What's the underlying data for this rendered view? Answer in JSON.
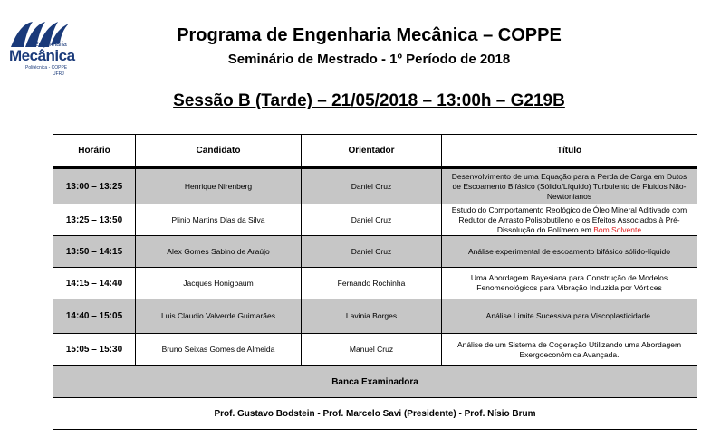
{
  "logo": {
    "line1": "Engenharia",
    "line2": "Mecânica",
    "line3": "Politécnica - COPPE",
    "line4": "UFRJ"
  },
  "header": {
    "title": "Programa de Engenharia Mecânica – COPPE",
    "subtitle": "Seminário de Mestrado - 1º Período de 2018",
    "session": "Sessão B (Tarde) – 21/05/2018 – 13:00h – G219B"
  },
  "table": {
    "columns": [
      "Horário",
      "Candidato",
      "Orientador",
      "Título"
    ],
    "rows": [
      {
        "time": "13:00 – 13:25",
        "candidate": "Henrique Nirenberg",
        "advisor": "Daniel Cruz",
        "title": "Desenvolvimento de uma Equação para a Perda de Carga em Dutos de Escoamento Bifásico (Sólido/Líquido) Turbulento de Fluidos Não-Newtonianos",
        "title_highlight": ""
      },
      {
        "time": "13:25 – 13:50",
        "candidate": "Plinio Martins Dias da Silva",
        "advisor": "Daniel Cruz",
        "title": "Estudo do Comportamento Reológico de Óleo Mineral Aditivado com Redutor de Arrasto Polisobutileno e os Efeitos Associados à Pré-Dissolução do Polímero em ",
        "title_highlight": "Bom Solvente"
      },
      {
        "time": "13:50 – 14:15",
        "candidate": "Alex Gomes Sabino de Araújo",
        "advisor": "Daniel Cruz",
        "title": "Análise experimental de escoamento bifásico sólido-líquido",
        "title_highlight": ""
      },
      {
        "time": "14:15 – 14:40",
        "candidate": "Jacques Honigbaum",
        "advisor": "Fernando Rochinha",
        "title": "Uma Abordagem Bayesiana para Construção de Modelos Fenomenológicos para Vibração Induzida por Vórtices",
        "title_highlight": ""
      },
      {
        "time": "14:40 – 15:05",
        "candidate": "Luis Claudio Valverde Guimarães",
        "advisor": "Lavinia Borges",
        "title": "Análise Limite Sucessiva para Viscoplasticidade.",
        "title_highlight": ""
      },
      {
        "time": "15:05 – 15:30",
        "candidate": "Bruno Seixas Gomes de Almeida",
        "advisor": "Manuel Cruz",
        "title": "Análise de um Sistema de Cogeração Utilizando uma Abordagem Exergoeconômica Avançada.",
        "title_highlight": ""
      }
    ],
    "banca_label": "Banca Examinadora",
    "banca_members": "Prof. Gustavo Bodstein - Prof. Marcelo Savi (Presidente) - Prof. Nísio Brum"
  },
  "colors": {
    "row_shade": "#c6c6c6",
    "highlight": "#e02020",
    "logo": "#1a3a7a"
  }
}
